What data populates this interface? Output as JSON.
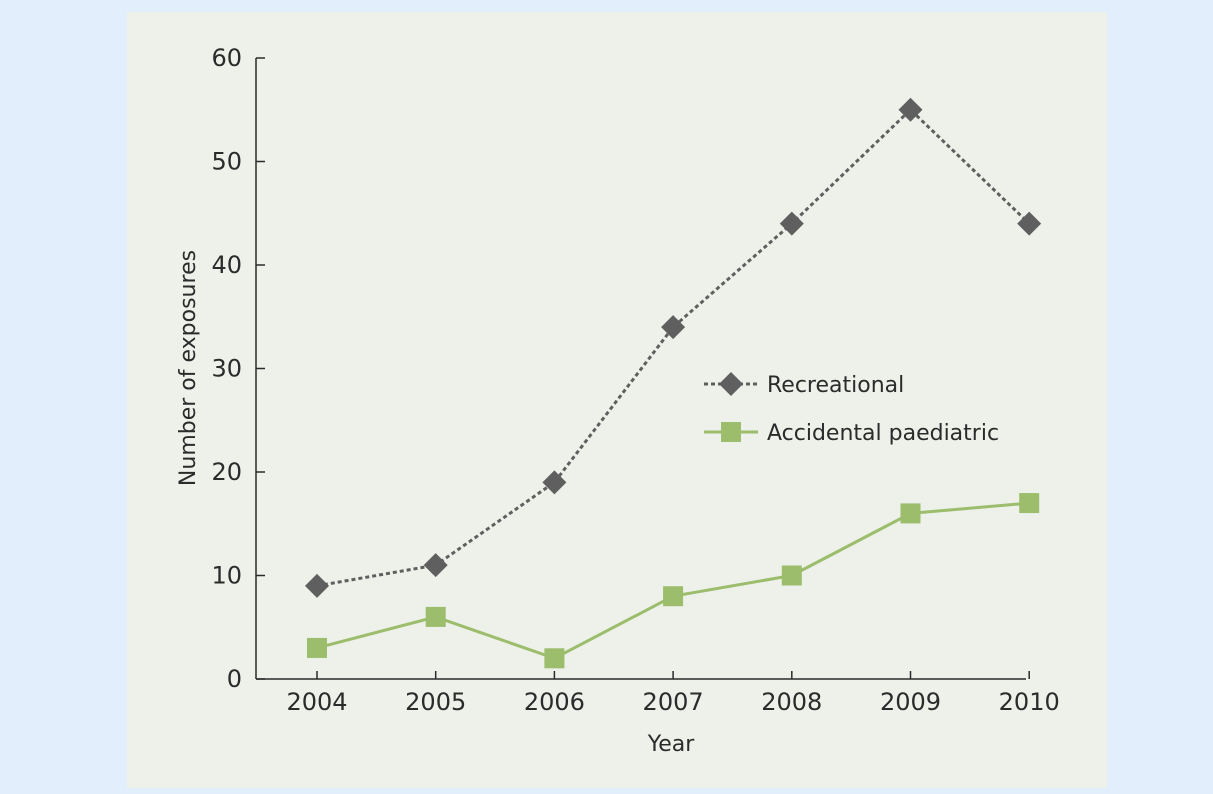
{
  "chart_data": {
    "type": "line",
    "title": "",
    "xlabel": "Year",
    "ylabel": "Number of exposures",
    "ylim": [
      0,
      60
    ],
    "yticks": [
      0,
      10,
      20,
      30,
      40,
      50,
      60
    ],
    "categories": [
      "2004",
      "2005",
      "2006",
      "2007",
      "2008",
      "2009",
      "2010"
    ],
    "grid": false,
    "legend_position": "center-right",
    "series": [
      {
        "name": "Recreational",
        "values": [
          9,
          11,
          19,
          34,
          44,
          55,
          44
        ],
        "color": "#5f5f5f",
        "marker": "diamond",
        "line_style": "dotted"
      },
      {
        "name": "Accidental paediatric",
        "values": [
          3,
          6,
          2,
          8,
          10,
          16,
          17
        ],
        "color": "#9bbd6c",
        "marker": "square",
        "line_style": "solid"
      }
    ]
  }
}
